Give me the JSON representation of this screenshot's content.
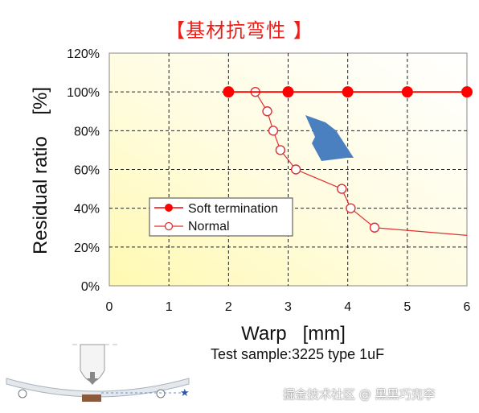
{
  "title": "【基材抗弯性 】",
  "subtitle": "Test sample:3225 type 1uF",
  "watermark": "掘金技术社区 @ 黑黑巧克李",
  "colors": {
    "soft": "#ff0000",
    "normal": "#e03030",
    "arrow": "#4a7fc0",
    "title": "#e8201a"
  },
  "chart_data": {
    "type": "line",
    "xlabel": "Warp   [mm]",
    "ylabel": "Residual ratio    [%]",
    "xlim": [
      0,
      6
    ],
    "ylim": [
      0,
      120
    ],
    "x_ticks": [
      "0",
      "1",
      "2",
      "3",
      "4",
      "5",
      "6"
    ],
    "y_ticks": [
      "0%",
      "20%",
      "40%",
      "60%",
      "80%",
      "100%",
      "120%"
    ],
    "grid": true,
    "legend_position": "center-left",
    "series": [
      {
        "name": "Soft termination",
        "marker": "filled-circle",
        "x": [
          2,
          3,
          4,
          5,
          6
        ],
        "y": [
          100,
          100,
          100,
          100,
          100
        ]
      },
      {
        "name": "Normal",
        "marker": "open-circle",
        "x": [
          2.45,
          2.65,
          2.75,
          2.87,
          3.13,
          3.9,
          4.05,
          4.45,
          6.0
        ],
        "y": [
          100,
          90,
          80,
          70,
          60,
          50,
          40,
          30,
          26
        ],
        "marker_points": 8
      }
    ]
  }
}
